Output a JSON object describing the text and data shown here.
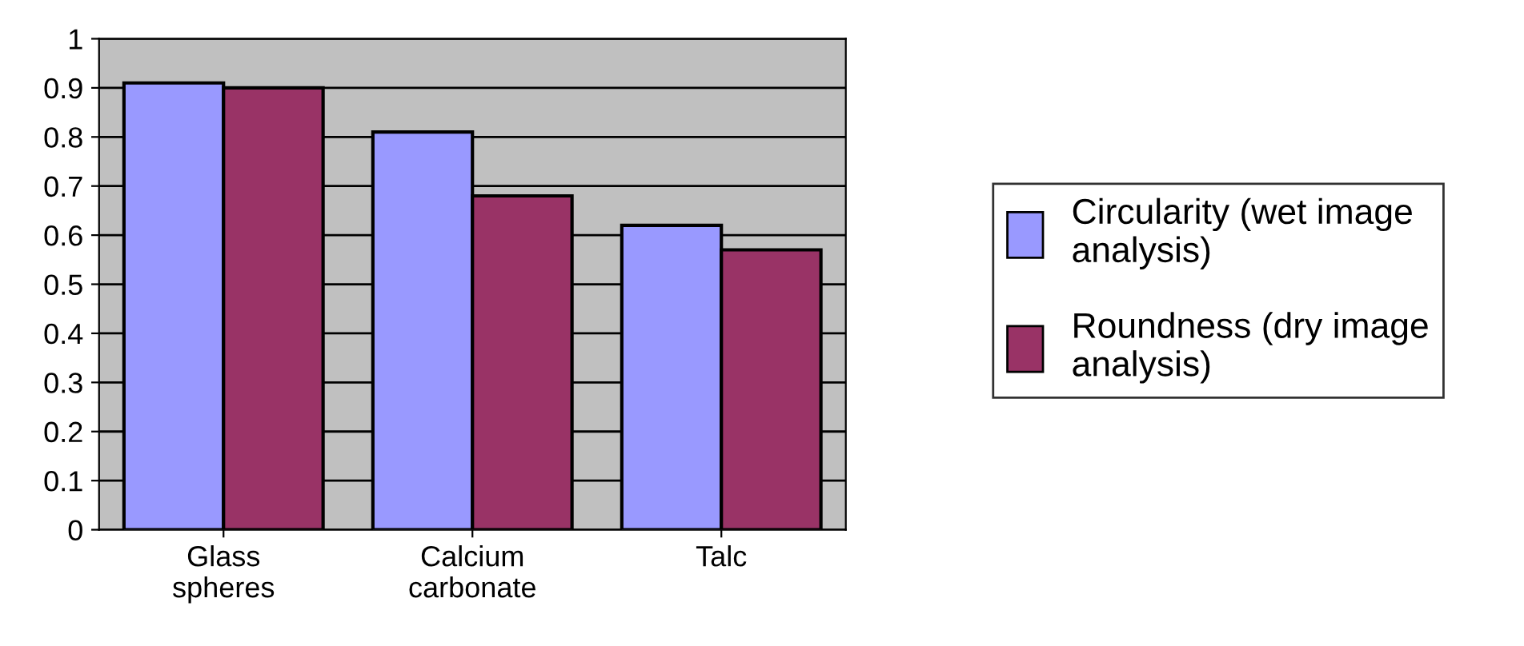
{
  "chart_data": {
    "type": "bar",
    "categories": [
      "Glass\nspheres",
      "Calcium\ncarbonate",
      "Talc"
    ],
    "series": [
      {
        "name": "Circularity (wet image\nanalysis)",
        "color": "#9999ff",
        "values": [
          0.91,
          0.81,
          0.62
        ]
      },
      {
        "name": "Roundness (dry image\nanalysis)",
        "color": "#993366",
        "values": [
          0.9,
          0.68,
          0.57
        ]
      }
    ],
    "ylim": [
      0,
      1
    ],
    "yticks": [
      0,
      {
        "value": 0.1,
        "label": "0.1"
      },
      {
        "value": 0.2,
        "label": "0.2"
      },
      {
        "value": 0.3,
        "label": "0.3"
      },
      {
        "value": 0.4,
        "label": "0.4"
      },
      {
        "value": 0.5,
        "label": "0.5"
      },
      {
        "value": 0.6,
        "label": "0.6"
      },
      {
        "value": 0.7,
        "label": "0.7"
      },
      {
        "value": 0.8,
        "label": "0.8"
      },
      {
        "value": 0.9,
        "label": "0.9"
      },
      1
    ],
    "grid": "y",
    "legend": "right"
  }
}
